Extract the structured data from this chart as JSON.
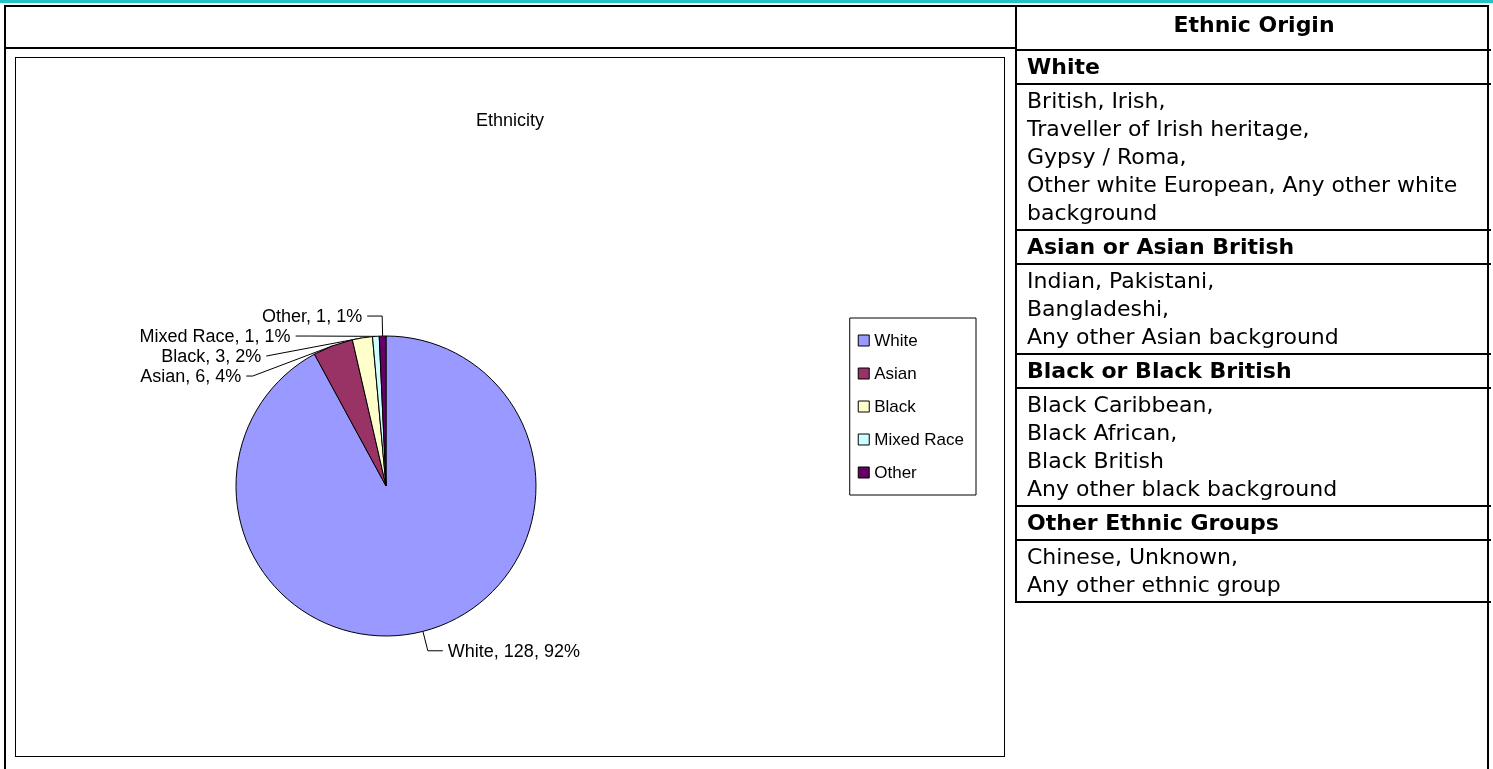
{
  "chart_data": [
    {
      "type": "pie",
      "title": "Ethnicity",
      "categories": [
        "White",
        "Asian",
        "Black",
        "Mixed Race",
        "Other"
      ],
      "values": [
        128,
        6,
        3,
        1,
        1
      ],
      "colors": [
        "#9999ff",
        "#993366",
        "#ffffcc",
        "#ccffff",
        "#660066"
      ],
      "value_labels": [
        "White, 128, 92%",
        "Asian, 6, 4%",
        "Black, 3, 2%",
        "Mixed Race, 1, 1%",
        "Other, 1, 1%"
      ],
      "legend": "right"
    },
    {
      "type": "other",
      "title": "Ethnic Origin",
      "annotations": [
        "White",
        "British, Irish,\nTraveller of Irish heritage,\nGypsy / Roma,\nOther white European, Any other white background",
        "Asian or Asian British",
        "Indian, Pakistani,\nBangladeshi,\nAny other Asian background",
        "Black or Black British",
        "Black Caribbean,\nBlack African,\nBlack British\nAny other black background",
        "Other Ethnic Groups",
        "Chinese, Unknown,\nAny other ethnic group"
      ]
    }
  ]
}
